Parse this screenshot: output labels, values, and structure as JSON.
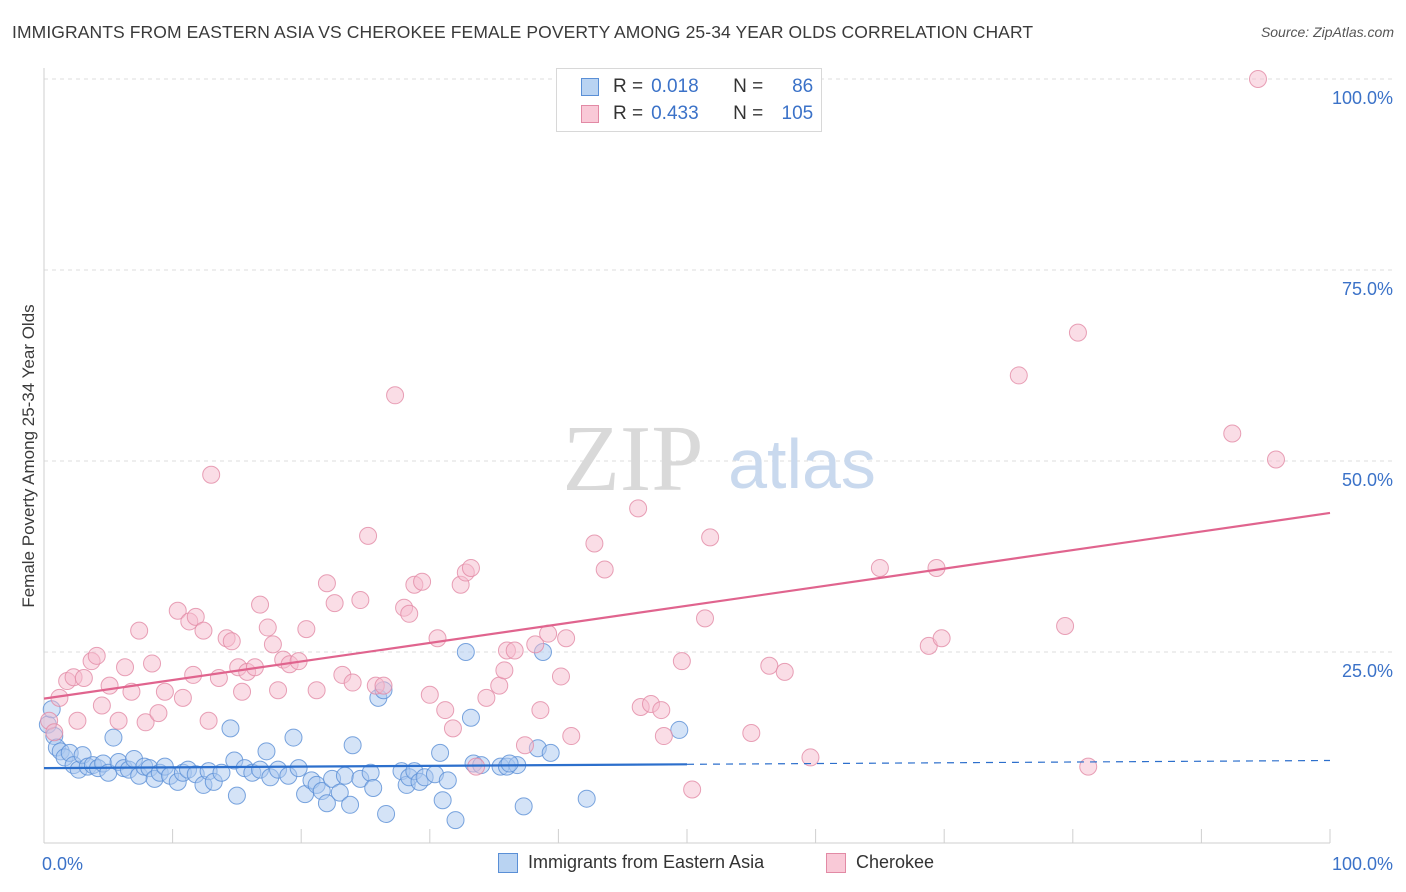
{
  "title": "IMMIGRANTS FROM EASTERN ASIA VS CHEROKEE FEMALE POVERTY AMONG 25-34 YEAR OLDS CORRELATION CHART",
  "source": "Source: ZipAtlas.com",
  "watermark": {
    "zip": "ZIP",
    "atlas": "atlas"
  },
  "legend": {
    "r_label": "R =",
    "n_label": "N =",
    "rows": [
      {
        "r": "0.018",
        "n": "86"
      },
      {
        "r": "0.433",
        "n": "105"
      }
    ]
  },
  "colors": {
    "blue_fill": "#a9c8ef",
    "blue_stroke": "#5a8fd6",
    "blue_line": "#2c6fcc",
    "pink_fill": "#f6bccd",
    "pink_stroke": "#e28aa5",
    "pink_line": "#e0648e",
    "axis_label": "#3b72c8",
    "grid": "#dedede"
  },
  "chart_data": {
    "type": "scatter",
    "title": "IMMIGRANTS FROM EASTERN ASIA VS CHEROKEE FEMALE POVERTY AMONG 25-34 YEAR OLDS CORRELATION CHART",
    "ylabel": "Female Poverty Among 25-34 Year Olds",
    "xlabel": "",
    "xlim": [
      0,
      100
    ],
    "ylim": [
      0,
      100
    ],
    "x_tick_labels": [
      "0.0%",
      "100.0%"
    ],
    "y_tick_labels": [
      "25.0%",
      "50.0%",
      "75.0%",
      "100.0%"
    ],
    "y_ticks": [
      25,
      50,
      75,
      100
    ],
    "grid": true,
    "legend_position": "top-center",
    "series": [
      {
        "name": "Immigrants from Eastern Asia",
        "r": 0.018,
        "n": 86,
        "trend": {
          "x0": 0,
          "y0": 9.8,
          "x1": 50,
          "y1": 10.3,
          "dash_x1": 100,
          "dash_y1": 10.8
        },
        "points": [
          [
            0.3,
            15.5
          ],
          [
            0.6,
            17.5
          ],
          [
            0.8,
            14
          ],
          [
            1,
            12.5
          ],
          [
            1.3,
            12
          ],
          [
            1.6,
            11.2
          ],
          [
            2,
            11.8
          ],
          [
            2.3,
            10.2
          ],
          [
            2.7,
            9.6
          ],
          [
            3,
            11.5
          ],
          [
            3.4,
            10
          ],
          [
            3.8,
            10.2
          ],
          [
            4.2,
            9.8
          ],
          [
            4.6,
            10.4
          ],
          [
            5,
            9.2
          ],
          [
            5.4,
            13.8
          ],
          [
            5.8,
            10.6
          ],
          [
            6.2,
            9.8
          ],
          [
            6.6,
            9.6
          ],
          [
            7,
            11
          ],
          [
            7.4,
            8.8
          ],
          [
            7.8,
            10
          ],
          [
            8.2,
            9.8
          ],
          [
            8.6,
            8.4
          ],
          [
            9,
            9.2
          ],
          [
            9.4,
            10
          ],
          [
            9.8,
            8.8
          ],
          [
            10.4,
            8
          ],
          [
            10.8,
            9.2
          ],
          [
            11.2,
            9.6
          ],
          [
            11.8,
            9
          ],
          [
            12.4,
            7.6
          ],
          [
            12.8,
            9.4
          ],
          [
            13.2,
            8
          ],
          [
            13.8,
            9.2
          ],
          [
            14.5,
            15
          ],
          [
            14.8,
            10.8
          ],
          [
            15,
            6.2
          ],
          [
            15.6,
            9.8
          ],
          [
            16.2,
            9.2
          ],
          [
            16.8,
            9.6
          ],
          [
            17.3,
            12
          ],
          [
            17.6,
            8.6
          ],
          [
            18.2,
            9.6
          ],
          [
            19,
            8.8
          ],
          [
            19.4,
            13.8
          ],
          [
            19.8,
            9.8
          ],
          [
            20.3,
            6.4
          ],
          [
            20.8,
            8.2
          ],
          [
            21.2,
            7.6
          ],
          [
            21.6,
            6.8
          ],
          [
            22,
            5.2
          ],
          [
            22.4,
            8.4
          ],
          [
            23,
            6.6
          ],
          [
            23.4,
            8.8
          ],
          [
            23.8,
            5
          ],
          [
            24,
            12.8
          ],
          [
            24.6,
            8.4
          ],
          [
            25.4,
            9.2
          ],
          [
            25.6,
            7.2
          ],
          [
            26,
            19
          ],
          [
            26.4,
            20
          ],
          [
            26.6,
            3.8
          ],
          [
            27.8,
            9.4
          ],
          [
            28.2,
            7.6
          ],
          [
            28.4,
            8.6
          ],
          [
            28.8,
            9.4
          ],
          [
            29.2,
            8
          ],
          [
            29.6,
            8.6
          ],
          [
            30.4,
            9
          ],
          [
            30.8,
            11.8
          ],
          [
            31,
            5.6
          ],
          [
            31.4,
            8.2
          ],
          [
            32,
            3
          ],
          [
            32.8,
            25
          ],
          [
            33.2,
            16.4
          ],
          [
            33.4,
            10.4
          ],
          [
            34,
            10.2
          ],
          [
            35.5,
            10
          ],
          [
            36,
            10
          ],
          [
            36.8,
            10.2
          ],
          [
            36.2,
            10.4
          ],
          [
            37.3,
            4.8
          ],
          [
            38.4,
            12.4
          ],
          [
            38.8,
            25
          ],
          [
            39.4,
            11.8
          ],
          [
            42.2,
            5.8
          ],
          [
            49.4,
            14.8
          ]
        ]
      },
      {
        "name": "Cherokee",
        "r": 0.433,
        "n": 105,
        "trend": {
          "x0": 0,
          "y0": 18.9,
          "x1": 100,
          "y1": 43.2
        },
        "points": [
          [
            0.4,
            16
          ],
          [
            0.8,
            14.5
          ],
          [
            1.2,
            19
          ],
          [
            1.8,
            21.2
          ],
          [
            2.3,
            21.7
          ],
          [
            2.6,
            16
          ],
          [
            3.1,
            21.6
          ],
          [
            3.7,
            23.8
          ],
          [
            4.1,
            24.5
          ],
          [
            4.5,
            18
          ],
          [
            5.1,
            20.6
          ],
          [
            5.8,
            16
          ],
          [
            6.3,
            23
          ],
          [
            6.8,
            19.8
          ],
          [
            7.4,
            27.8
          ],
          [
            7.9,
            15.8
          ],
          [
            8.4,
            23.5
          ],
          [
            8.9,
            17
          ],
          [
            9.4,
            19.8
          ],
          [
            10.4,
            30.4
          ],
          [
            10.8,
            19
          ],
          [
            11.3,
            29
          ],
          [
            11.6,
            22
          ],
          [
            11.8,
            29.6
          ],
          [
            12.4,
            27.8
          ],
          [
            12.8,
            16
          ],
          [
            13,
            48.2
          ],
          [
            13.6,
            21.6
          ],
          [
            14.2,
            26.8
          ],
          [
            14.6,
            26.4
          ],
          [
            15.1,
            23
          ],
          [
            15.4,
            19.8
          ],
          [
            15.8,
            22.4
          ],
          [
            16.4,
            23
          ],
          [
            16.8,
            31.2
          ],
          [
            17.4,
            28.2
          ],
          [
            17.8,
            26
          ],
          [
            18.2,
            20
          ],
          [
            18.6,
            24
          ],
          [
            19.1,
            23.4
          ],
          [
            19.8,
            23.8
          ],
          [
            20.4,
            28
          ],
          [
            21.2,
            20
          ],
          [
            22,
            34
          ],
          [
            22.6,
            31.4
          ],
          [
            23.2,
            22
          ],
          [
            24,
            21
          ],
          [
            24.6,
            31.8
          ],
          [
            25.2,
            40.2
          ],
          [
            25.8,
            20.6
          ],
          [
            26.4,
            20.6
          ],
          [
            27.3,
            58.6
          ],
          [
            28,
            30.8
          ],
          [
            28.4,
            30
          ],
          [
            28.8,
            33.8
          ],
          [
            29.4,
            34.2
          ],
          [
            30,
            19.4
          ],
          [
            30.6,
            26.8
          ],
          [
            31.2,
            17.4
          ],
          [
            31.8,
            15
          ],
          [
            32.4,
            33.8
          ],
          [
            32.8,
            35.4
          ],
          [
            33.2,
            36
          ],
          [
            33.6,
            10
          ],
          [
            34.4,
            19
          ],
          [
            35.4,
            20.6
          ],
          [
            35.8,
            22.6
          ],
          [
            36,
            25.2
          ],
          [
            36.6,
            25.2
          ],
          [
            37.4,
            12.8
          ],
          [
            38.2,
            26
          ],
          [
            38.6,
            17.4
          ],
          [
            39.2,
            27.4
          ],
          [
            40.2,
            21.8
          ],
          [
            40.6,
            26.8
          ],
          [
            41,
            14
          ],
          [
            42.8,
            39.2
          ],
          [
            43.6,
            35.8
          ],
          [
            46.2,
            43.8
          ],
          [
            46.4,
            17.8
          ],
          [
            47.2,
            18.2
          ],
          [
            48,
            17.4
          ],
          [
            48.2,
            14
          ],
          [
            49.6,
            23.8
          ],
          [
            50.4,
            7
          ],
          [
            51.4,
            29.4
          ],
          [
            51.8,
            40
          ],
          [
            55,
            14.4
          ],
          [
            56.4,
            23.2
          ],
          [
            57.6,
            22.4
          ],
          [
            59.6,
            11.2
          ],
          [
            65,
            36
          ],
          [
            68.8,
            25.8
          ],
          [
            69.4,
            36
          ],
          [
            69.8,
            26.8
          ],
          [
            75.8,
            61.2
          ],
          [
            79.4,
            28.4
          ],
          [
            80.4,
            66.8
          ],
          [
            81.2,
            10
          ],
          [
            92.4,
            53.6
          ],
          [
            94.4,
            100
          ],
          [
            95.8,
            50.2
          ]
        ]
      }
    ]
  },
  "bottom_legend": [
    {
      "label": "Immigrants from Eastern Asia"
    },
    {
      "label": "Cherokee"
    }
  ]
}
